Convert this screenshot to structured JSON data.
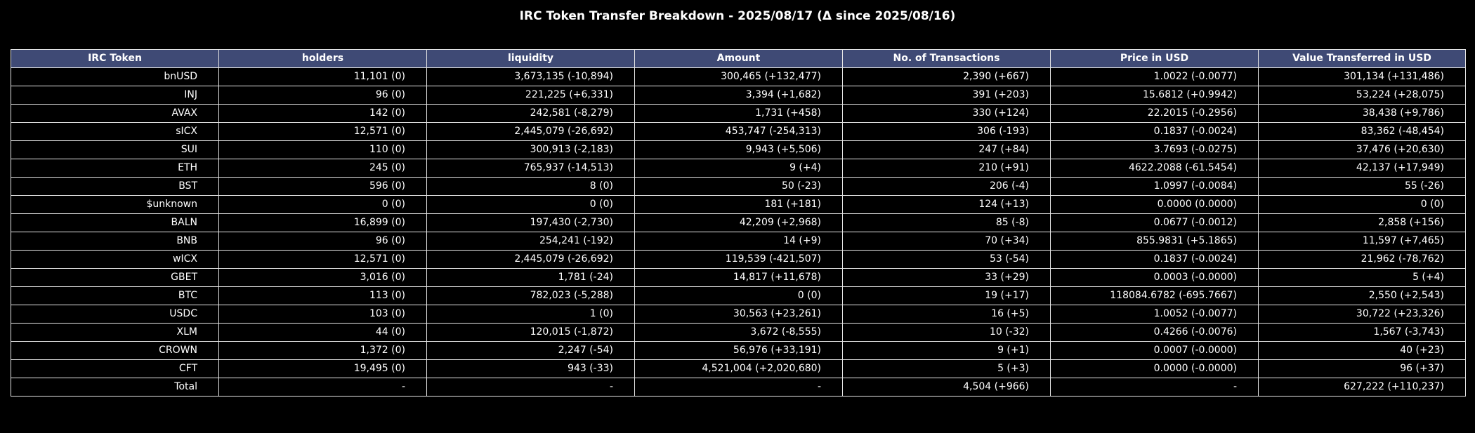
{
  "title": "IRC Token Transfer Breakdown - 2025/08/17 (Δ since 2025/08/16)",
  "header_color": "#3f4a75",
  "columns": [
    "IRC Token",
    "holders",
    "liquidity",
    "Amount",
    "No. of Transactions",
    "Price in USD",
    "Value Transferred in USD"
  ],
  "rows": [
    [
      "bnUSD",
      "11,101 (0)",
      "3,673,135 (-10,894)",
      "300,465 (+132,477)",
      "2,390 (+667)",
      "1.0022 (-0.0077)",
      "301,134 (+131,486)"
    ],
    [
      "INJ",
      "96 (0)",
      "221,225 (+6,331)",
      "3,394 (+1,682)",
      "391 (+203)",
      "15.6812 (+0.9942)",
      "53,224 (+28,075)"
    ],
    [
      "AVAX",
      "142 (0)",
      "242,581 (-8,279)",
      "1,731 (+458)",
      "330 (+124)",
      "22.2015 (-0.2956)",
      "38,438 (+9,786)"
    ],
    [
      "sICX",
      "12,571 (0)",
      "2,445,079 (-26,692)",
      "453,747 (-254,313)",
      "306 (-193)",
      "0.1837 (-0.0024)",
      "83,362 (-48,454)"
    ],
    [
      "SUI",
      "110 (0)",
      "300,913 (-2,183)",
      "9,943 (+5,506)",
      "247 (+84)",
      "3.7693 (-0.0275)",
      "37,476 (+20,630)"
    ],
    [
      "ETH",
      "245 (0)",
      "765,937 (-14,513)",
      "9 (+4)",
      "210 (+91)",
      "4622.2088 (-61.5454)",
      "42,137 (+17,949)"
    ],
    [
      "BST",
      "596 (0)",
      "8 (0)",
      "50 (-23)",
      "206 (-4)",
      "1.0997 (-0.0084)",
      "55 (-26)"
    ],
    [
      "$unknown",
      "0 (0)",
      "0 (0)",
      "181 (+181)",
      "124 (+13)",
      "0.0000 (0.0000)",
      "0 (0)"
    ],
    [
      "BALN",
      "16,899 (0)",
      "197,430 (-2,730)",
      "42,209 (+2,968)",
      "85 (-8)",
      "0.0677 (-0.0012)",
      "2,858 (+156)"
    ],
    [
      "BNB",
      "96 (0)",
      "254,241 (-192)",
      "14 (+9)",
      "70 (+34)",
      "855.9831 (+5.1865)",
      "11,597 (+7,465)"
    ],
    [
      "wICX",
      "12,571 (0)",
      "2,445,079 (-26,692)",
      "119,539 (-421,507)",
      "53 (-54)",
      "0.1837 (-0.0024)",
      "21,962 (-78,762)"
    ],
    [
      "GBET",
      "3,016 (0)",
      "1,781 (-24)",
      "14,817 (+11,678)",
      "33 (+29)",
      "0.0003 (-0.0000)",
      "5 (+4)"
    ],
    [
      "BTC",
      "113 (0)",
      "782,023 (-5,288)",
      "0 (0)",
      "19 (+17)",
      "118084.6782 (-695.7667)",
      "2,550 (+2,543)"
    ],
    [
      "USDC",
      "103 (0)",
      "1 (0)",
      "30,563 (+23,261)",
      "16 (+5)",
      "1.0052 (-0.0077)",
      "30,722 (+23,326)"
    ],
    [
      "XLM",
      "44 (0)",
      "120,015 (-1,872)",
      "3,672 (-8,555)",
      "10 (-32)",
      "0.4266 (-0.0076)",
      "1,567 (-3,743)"
    ],
    [
      "CROWN",
      "1,372 (0)",
      "2,247 (-54)",
      "56,976 (+33,191)",
      "9 (+1)",
      "0.0007 (-0.0000)",
      "40 (+23)"
    ],
    [
      "CFT",
      "19,495 (0)",
      "943 (-33)",
      "4,521,004 (+2,020,680)",
      "5 (+3)",
      "0.0000 (-0.0000)",
      "96 (+37)"
    ],
    [
      "Total",
      "-",
      "-",
      "-",
      "4,504 (+966)",
      "-",
      "627,222 (+110,237)"
    ]
  ]
}
